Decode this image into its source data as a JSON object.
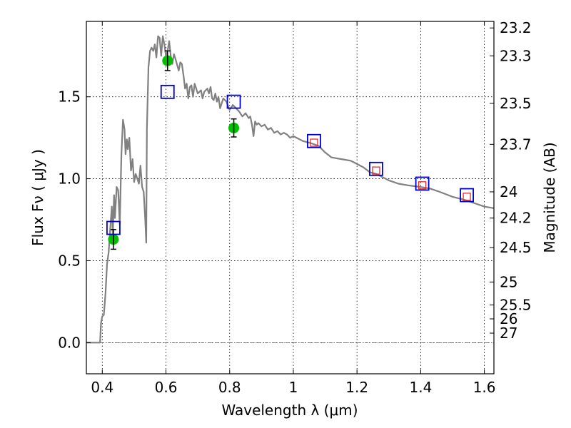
{
  "chart_data": {
    "type": "scatter",
    "xlabel": "Wavelength  λ (μm)",
    "ylabel": "Flux  Fν  ( μJy )",
    "ylabel_right": "Magnitude (AB)",
    "xlim": [
      0.35,
      1.63
    ],
    "ylim": [
      -0.19,
      1.96
    ],
    "x_ticks": [
      0.4,
      0.6,
      0.8,
      1.0,
      1.2,
      1.4,
      1.6
    ],
    "x_tick_labels": [
      "0.4",
      "0.6",
      "0.8",
      "1",
      "1.2",
      "1.4",
      "1.6"
    ],
    "y_ticks": [
      0.0,
      0.5,
      1.0,
      1.5
    ],
    "y_tick_labels": [
      "0.0",
      "0.5",
      "1.0",
      "1.5"
    ],
    "right_ticks": [
      {
        "label": "23.2",
        "flux": 1.92
      },
      {
        "label": "23.3",
        "flux": 1.75
      },
      {
        "label": "23.5",
        "flux": 1.46
      },
      {
        "label": "23.7",
        "flux": 1.21
      },
      {
        "label": "24",
        "flux": 0.92
      },
      {
        "label": "24.2",
        "flux": 0.76
      },
      {
        "label": "24.5",
        "flux": 0.58
      },
      {
        "label": "25",
        "flux": 0.37
      },
      {
        "label": "25.5",
        "flux": 0.23
      },
      {
        "label": "26",
        "flux": 0.145
      },
      {
        "label": "27",
        "flux": 0.058
      }
    ],
    "grid": true,
    "series": [
      {
        "kind": "model_spectrum",
        "color": "#808080",
        "points": [
          [
            0.35,
            0.0
          ],
          [
            0.39,
            0.0
          ],
          [
            0.393,
            0.0
          ],
          [
            0.396,
            0.12
          ],
          [
            0.4,
            0.16
          ],
          [
            0.405,
            0.17
          ],
          [
            0.41,
            0.3
          ],
          [
            0.415,
            0.48
          ],
          [
            0.42,
            0.55
          ],
          [
            0.425,
            0.7
          ],
          [
            0.43,
            0.83
          ],
          [
            0.433,
            0.65
          ],
          [
            0.437,
            0.9
          ],
          [
            0.44,
            0.76
          ],
          [
            0.445,
            0.95
          ],
          [
            0.45,
            0.93
          ],
          [
            0.455,
            0.72
          ],
          [
            0.46,
            1.15
          ],
          [
            0.465,
            1.36
          ],
          [
            0.47,
            1.3
          ],
          [
            0.473,
            1.15
          ],
          [
            0.477,
            1.24
          ],
          [
            0.48,
            1.18
          ],
          [
            0.485,
            1.25
          ],
          [
            0.49,
            1.05
          ],
          [
            0.495,
            1.12
          ],
          [
            0.5,
            0.98
          ],
          [
            0.505,
            1.03
          ],
          [
            0.51,
            1.0
          ],
          [
            0.515,
            0.97
          ],
          [
            0.52,
            1.08
          ],
          [
            0.525,
            0.95
          ],
          [
            0.53,
            0.92
          ],
          [
            0.535,
            0.75
          ],
          [
            0.538,
            0.61
          ],
          [
            0.54,
            1.3
          ],
          [
            0.545,
            1.68
          ],
          [
            0.55,
            1.78
          ],
          [
            0.555,
            1.8
          ],
          [
            0.56,
            1.78
          ],
          [
            0.565,
            1.82
          ],
          [
            0.57,
            1.74
          ],
          [
            0.575,
            1.87
          ],
          [
            0.58,
            1.86
          ],
          [
            0.585,
            1.75
          ],
          [
            0.59,
            1.87
          ],
          [
            0.595,
            1.82
          ],
          [
            0.6,
            1.75
          ],
          [
            0.605,
            1.78
          ],
          [
            0.61,
            1.84
          ],
          [
            0.615,
            1.75
          ],
          [
            0.62,
            1.7
          ],
          [
            0.625,
            1.76
          ],
          [
            0.63,
            1.73
          ],
          [
            0.64,
            1.66
          ],
          [
            0.645,
            1.71
          ],
          [
            0.65,
            1.7
          ],
          [
            0.655,
            1.63
          ],
          [
            0.66,
            1.55
          ],
          [
            0.665,
            1.58
          ],
          [
            0.67,
            1.49
          ],
          [
            0.675,
            1.56
          ],
          [
            0.68,
            1.57
          ],
          [
            0.685,
            1.5
          ],
          [
            0.69,
            1.58
          ],
          [
            0.7,
            1.52
          ],
          [
            0.71,
            1.54
          ],
          [
            0.715,
            1.49
          ],
          [
            0.72,
            1.53
          ],
          [
            0.73,
            1.55
          ],
          [
            0.735,
            1.52
          ],
          [
            0.74,
            1.56
          ],
          [
            0.745,
            1.49
          ],
          [
            0.75,
            1.48
          ],
          [
            0.755,
            1.52
          ],
          [
            0.76,
            1.47
          ],
          [
            0.765,
            1.5
          ],
          [
            0.77,
            1.43
          ],
          [
            0.78,
            1.49
          ],
          [
            0.79,
            1.47
          ],
          [
            0.8,
            1.42
          ],
          [
            0.81,
            1.45
          ],
          [
            0.82,
            1.43
          ],
          [
            0.83,
            1.41
          ],
          [
            0.84,
            1.38
          ],
          [
            0.85,
            1.4
          ],
          [
            0.86,
            1.37
          ],
          [
            0.865,
            1.38
          ],
          [
            0.87,
            1.33
          ],
          [
            0.875,
            1.26
          ],
          [
            0.88,
            1.35
          ],
          [
            0.885,
            1.33
          ],
          [
            0.89,
            1.34
          ],
          [
            0.9,
            1.32
          ],
          [
            0.91,
            1.33
          ],
          [
            0.92,
            1.3
          ],
          [
            0.93,
            1.31
          ],
          [
            0.94,
            1.28
          ],
          [
            0.95,
            1.29
          ],
          [
            0.96,
            1.27
          ],
          [
            0.97,
            1.28
          ],
          [
            0.98,
            1.27
          ],
          [
            0.99,
            1.25
          ],
          [
            1.0,
            1.26
          ],
          [
            1.01,
            1.25
          ],
          [
            1.03,
            1.23
          ],
          [
            1.05,
            1.22
          ],
          [
            1.08,
            1.2
          ],
          [
            1.1,
            1.16
          ],
          [
            1.12,
            1.13
          ],
          [
            1.15,
            1.12
          ],
          [
            1.18,
            1.11
          ],
          [
            1.2,
            1.09
          ],
          [
            1.22,
            1.07
          ],
          [
            1.24,
            1.04
          ],
          [
            1.26,
            1.03
          ],
          [
            1.28,
            1.01
          ],
          [
            1.3,
            0.99
          ],
          [
            1.33,
            0.97
          ],
          [
            1.36,
            0.96
          ],
          [
            1.4,
            0.95
          ],
          [
            1.43,
            0.94
          ],
          [
            1.46,
            0.92
          ],
          [
            1.5,
            0.89
          ],
          [
            1.54,
            0.87
          ],
          [
            1.57,
            0.85
          ],
          [
            1.6,
            0.83
          ],
          [
            1.63,
            0.82
          ]
        ]
      },
      {
        "kind": "observed_photometry",
        "color": "#00c000",
        "points": [
          {
            "x": 0.435,
            "y": 0.63,
            "err": 0.06
          },
          {
            "x": 0.605,
            "y": 1.72,
            "err": 0.06
          },
          {
            "x": 0.813,
            "y": 1.31,
            "err": 0.055
          }
        ]
      },
      {
        "kind": "model_photometry",
        "color": "#0000cc",
        "points": [
          {
            "x": 0.435,
            "y": 0.7
          },
          {
            "x": 0.605,
            "y": 1.53
          },
          {
            "x": 0.813,
            "y": 1.47
          },
          {
            "x": 1.065,
            "y": 1.23
          },
          {
            "x": 1.26,
            "y": 1.06
          },
          {
            "x": 1.405,
            "y": 0.97
          },
          {
            "x": 1.545,
            "y": 0.9
          }
        ]
      },
      {
        "kind": "nir_photometry",
        "color": "#e03030",
        "points": [
          {
            "x": 1.065,
            "y": 1.22
          },
          {
            "x": 1.26,
            "y": 1.05
          },
          {
            "x": 1.405,
            "y": 0.96
          },
          {
            "x": 1.545,
            "y": 0.89
          }
        ]
      }
    ]
  }
}
